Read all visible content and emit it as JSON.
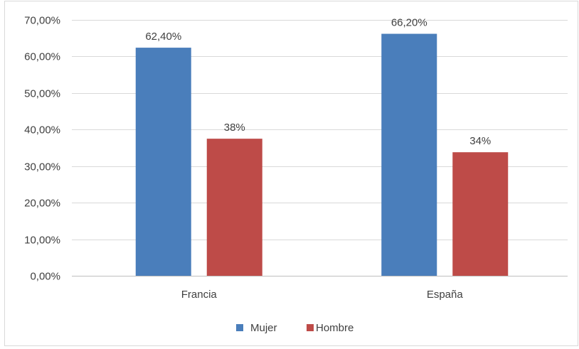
{
  "chart_data": {
    "type": "bar",
    "title": "",
    "xlabel": "",
    "ylabel": "",
    "categories": [
      "Francia",
      "España"
    ],
    "series": [
      {
        "name": "Mujer",
        "values": [
          0.624,
          0.662
        ],
        "labels": [
          "62,40%",
          "66,20%"
        ],
        "color": "#4a7ebb"
      },
      {
        "name": "Hombre",
        "values": [
          0.375,
          0.338
        ],
        "labels": [
          "38%",
          "34%"
        ],
        "color": "#be4b48"
      }
    ],
    "ylim": [
      0,
      0.7
    ],
    "yticks": [
      0,
      0.1,
      0.2,
      0.3,
      0.4,
      0.5,
      0.6,
      0.7
    ],
    "ytick_labels": [
      "0,00%",
      "10,00%",
      "20,00%",
      "30,00%",
      "40,00%",
      "50,00%",
      "60,00%",
      "70,00%"
    ],
    "grid": true,
    "legend_position": "bottom",
    "colors": {
      "grid": "#d9d9d9",
      "text": "#404040",
      "border": "#d9d9d9"
    }
  }
}
